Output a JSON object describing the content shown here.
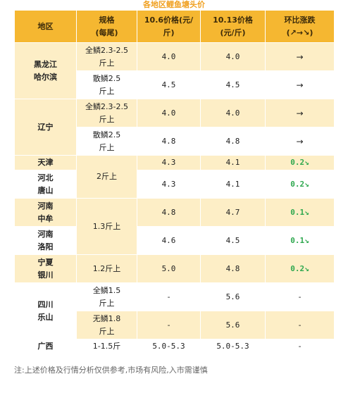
{
  "title": "各地区鲤鱼塘头价",
  "headers": {
    "region": "地区",
    "spec_line1": "规格",
    "spec_line2": "(每尾)",
    "price1_line1": "10.6价格(元/",
    "price1_line2": "斤)",
    "price2_line1": "10.13价格",
    "price2_line2": "(元/斤)",
    "change_line1": "环比涨跌",
    "change_line2": "(↗→↘)"
  },
  "regions": {
    "heilongjiang_1": "黑龙江",
    "heilongjiang_2": "哈尔滨",
    "liaoning": "辽宁",
    "tianjin": "天津",
    "hebei_1": "河北",
    "hebei_2": "唐山",
    "henan_zhongmou_1": "河南",
    "henan_zhongmou_2": "中牟",
    "henan_luoyang_1": "河南",
    "henan_luoyang_2": "洛阳",
    "ningxia_1": "宁夏",
    "ningxia_2": "银川",
    "sichuan_1": "四川",
    "sichuan_2": "乐山",
    "guangxi": "广西"
  },
  "specs": {
    "quanlin_1": "全鳞2.3-2.5",
    "quanlin_2": "斤上",
    "sanlin_1": "散鳞2.5",
    "sanlin_2": "斤上",
    "two_jin": "2斤上",
    "one_three": "1.3斤上",
    "one_two": "1.2斤上",
    "quanlin15_1": "全鳞1.5",
    "quanlin15_2": "斤上",
    "wulin_1": "无鳞1.8",
    "wulin_2": "斤上",
    "guangxi": "1-1.5斤"
  },
  "rows": [
    {
      "p1": "4.0",
      "p2": "4.0",
      "chg": "→"
    },
    {
      "p1": "4.5",
      "p2": "4.5",
      "chg": "→"
    },
    {
      "p1": "4.0",
      "p2": "4.0",
      "chg": "→"
    },
    {
      "p1": "4.8",
      "p2": "4.8",
      "chg": "→"
    },
    {
      "p1": "4.3",
      "p2": "4.1",
      "chg": "0.2↘"
    },
    {
      "p1": "4.3",
      "p2": "4.1",
      "chg": "0.2↘"
    },
    {
      "p1": "4.8",
      "p2": "4.7",
      "chg": "0.1↘"
    },
    {
      "p1": "4.6",
      "p2": "4.5",
      "chg": "0.1↘"
    },
    {
      "p1": "5.0",
      "p2": "4.8",
      "chg": "0.2↘"
    },
    {
      "p1": "-",
      "p2": "5.6",
      "chg": "-"
    },
    {
      "p1": "-",
      "p2": "5.6",
      "chg": "-"
    },
    {
      "p1": "5.0-5.3",
      "p2": "5.0-5.3",
      "chg": "-"
    }
  ],
  "note": "注:上述价格及行情分析仅供参考,市场有风险,入市需谨慎",
  "colors": {
    "header_bg": "#f5b731",
    "row_yellow": "#fdeec6",
    "title": "#f0a020",
    "down": "#2fa84f"
  }
}
